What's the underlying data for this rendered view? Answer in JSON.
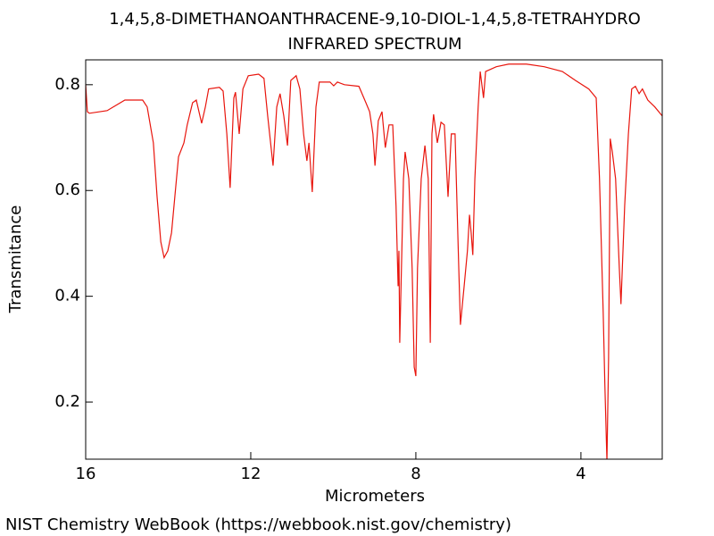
{
  "chart_data": {
    "type": "line",
    "title": "1,4,5,8-DIMETHANOANTHRACENE-9,10-DIOL-1,4,5,8-TETRAHYDRO",
    "subtitle": "INFRARED SPECTRUM",
    "x_label": "Micrometers",
    "y_label": "Transmitance",
    "xlim": [
      16,
      2.03
    ],
    "ylim": [
      0.092,
      0.847
    ],
    "xticks": [
      16,
      12,
      8,
      4
    ],
    "yticks": [
      0.2,
      0.4,
      0.6,
      0.8
    ],
    "x": [
      16.0,
      15.96,
      15.91,
      15.48,
      15.05,
      14.62,
      14.51,
      14.36,
      14.27,
      14.18,
      14.1,
      14.01,
      13.92,
      13.84,
      13.75,
      13.62,
      13.54,
      13.41,
      13.32,
      13.19,
      13.1,
      13.02,
      12.76,
      12.67,
      12.58,
      12.5,
      12.41,
      12.37,
      12.28,
      12.19,
      12.06,
      11.81,
      11.68,
      11.59,
      11.46,
      11.37,
      11.29,
      11.2,
      11.11,
      11.03,
      10.9,
      10.81,
      10.72,
      10.64,
      10.59,
      10.51,
      10.42,
      10.34,
      10.08,
      9.99,
      9.9,
      9.73,
      9.38,
      9.21,
      9.12,
      9.04,
      8.99,
      8.91,
      8.82,
      8.74,
      8.65,
      8.56,
      8.48,
      8.43,
      8.41,
      8.39,
      8.3,
      8.26,
      8.17,
      8.09,
      8.04,
      8.0,
      7.96,
      7.87,
      7.78,
      7.7,
      7.65,
      7.61,
      7.57,
      7.48,
      7.39,
      7.31,
      7.22,
      7.14,
      7.05,
      6.96,
      6.92,
      6.83,
      6.75,
      6.7,
      6.66,
      6.62,
      6.57,
      6.49,
      6.44,
      6.4,
      6.36,
      6.31,
      6.05,
      5.75,
      5.32,
      4.89,
      4.45,
      4.13,
      3.81,
      3.63,
      3.55,
      3.46,
      3.42,
      3.37,
      3.33,
      3.29,
      3.24,
      3.16,
      3.07,
      3.03,
      2.94,
      2.85,
      2.77,
      2.68,
      2.59,
      2.51,
      2.38,
      2.21,
      2.03
    ],
    "series": [
      {
        "name": "Transmitance",
        "color": "#e8150d",
        "values": [
          0.8,
          0.749,
          0.746,
          0.751,
          0.771,
          0.771,
          0.758,
          0.69,
          0.588,
          0.503,
          0.473,
          0.486,
          0.52,
          0.588,
          0.664,
          0.69,
          0.724,
          0.766,
          0.771,
          0.727,
          0.758,
          0.792,
          0.795,
          0.788,
          0.707,
          0.605,
          0.775,
          0.786,
          0.707,
          0.792,
          0.817,
          0.82,
          0.812,
          0.741,
          0.647,
          0.758,
          0.783,
          0.741,
          0.685,
          0.808,
          0.817,
          0.792,
          0.707,
          0.656,
          0.69,
          0.597,
          0.758,
          0.805,
          0.805,
          0.798,
          0.805,
          0.8,
          0.797,
          0.766,
          0.749,
          0.707,
          0.647,
          0.732,
          0.749,
          0.681,
          0.724,
          0.724,
          0.571,
          0.419,
          0.486,
          0.312,
          0.622,
          0.673,
          0.622,
          0.453,
          0.266,
          0.249,
          0.453,
          0.622,
          0.685,
          0.622,
          0.312,
          0.707,
          0.744,
          0.69,
          0.729,
          0.724,
          0.588,
          0.707,
          0.707,
          0.453,
          0.346,
          0.419,
          0.486,
          0.554,
          0.52,
          0.478,
          0.622,
          0.758,
          0.825,
          0.8,
          0.775,
          0.825,
          0.834,
          0.839,
          0.839,
          0.834,
          0.825,
          0.808,
          0.792,
          0.775,
          0.622,
          0.368,
          0.232,
          0.088,
          0.283,
          0.698,
          0.673,
          0.622,
          0.453,
          0.385,
          0.571,
          0.707,
          0.792,
          0.797,
          0.783,
          0.792,
          0.771,
          0.758,
          0.741
        ]
      }
    ]
  },
  "footer": "NIST Chemistry WebBook (https://webbook.nist.gov/chemistry)"
}
